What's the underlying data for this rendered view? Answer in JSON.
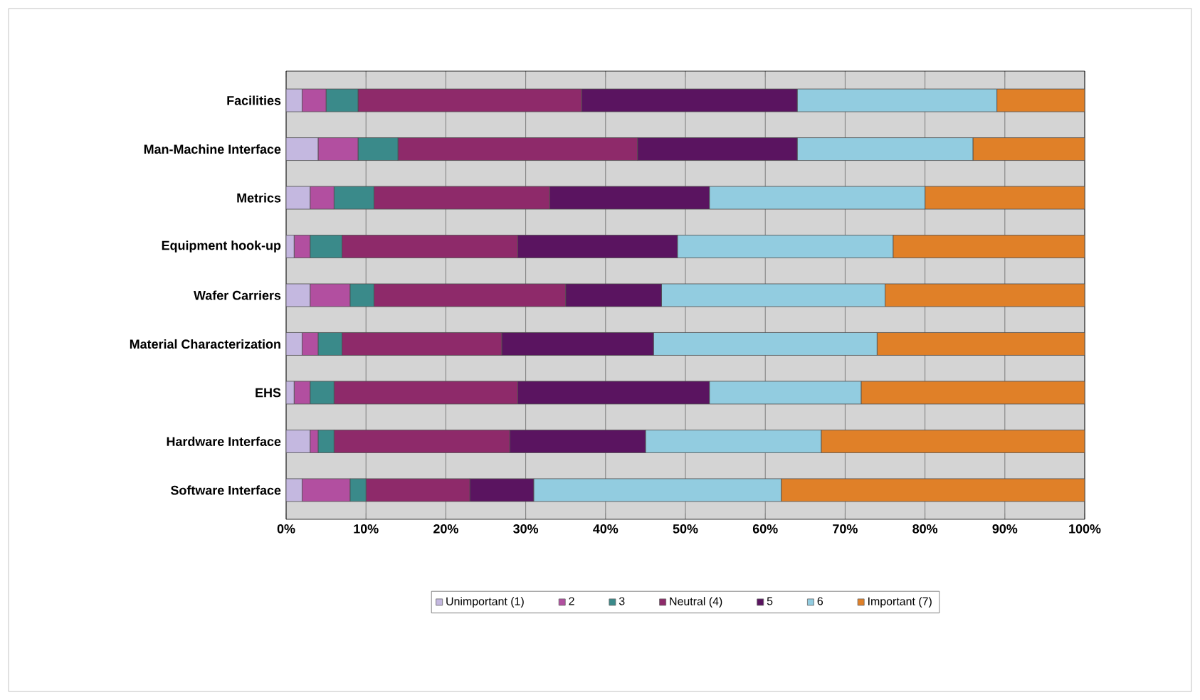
{
  "chart_data": {
    "type": "bar",
    "orientation": "horizontal",
    "stacked": true,
    "categories": [
      "Facilities",
      "Man-Machine Interface",
      "Metrics",
      "Equipment hook-up",
      "Wafer Carriers",
      "Material Characterization",
      "EHS",
      "Hardware Interface",
      "Software Interface"
    ],
    "series": [
      {
        "name": "Unimportant (1)",
        "color": "#c4b8e0",
        "values": [
          2,
          4,
          3,
          1,
          3,
          2,
          1,
          3,
          2
        ]
      },
      {
        "name": "2",
        "color": "#b24fa0",
        "values": [
          3,
          5,
          3,
          2,
          5,
          2,
          2,
          1,
          6
        ]
      },
      {
        "name": "3",
        "color": "#3a8a8a",
        "values": [
          4,
          5,
          5,
          4,
          3,
          3,
          3,
          2,
          2
        ]
      },
      {
        "name": "Neutral (4)",
        "color": "#8e2a6a",
        "values": [
          28,
          30,
          22,
          22,
          24,
          20,
          23,
          22,
          13
        ]
      },
      {
        "name": "5",
        "color": "#5a1460",
        "values": [
          27,
          20,
          20,
          20,
          12,
          19,
          24,
          17,
          8
        ]
      },
      {
        "name": "6",
        "color": "#92cce0",
        "values": [
          25,
          22,
          27,
          27,
          28,
          28,
          19,
          22,
          31
        ]
      },
      {
        "name": "Important (7)",
        "color": "#e08028",
        "values": [
          11,
          14,
          20,
          24,
          25,
          26,
          28,
          33,
          38
        ]
      }
    ],
    "xlim": [
      0,
      100
    ],
    "xticks": [
      {
        "value": 0,
        "label": "0%"
      },
      {
        "value": 10,
        "label": "10%"
      },
      {
        "value": 20,
        "label": "20%"
      },
      {
        "value": 30,
        "label": "30%"
      },
      {
        "value": 40,
        "label": "40%"
      },
      {
        "value": 50,
        "label": "50%"
      },
      {
        "value": 60,
        "label": "60%"
      },
      {
        "value": 70,
        "label": "70%"
      },
      {
        "value": 80,
        "label": "80%"
      },
      {
        "value": 90,
        "label": "90%"
      },
      {
        "value": 100,
        "label": "100%"
      }
    ],
    "grid": "x",
    "legend": "bottom"
  }
}
